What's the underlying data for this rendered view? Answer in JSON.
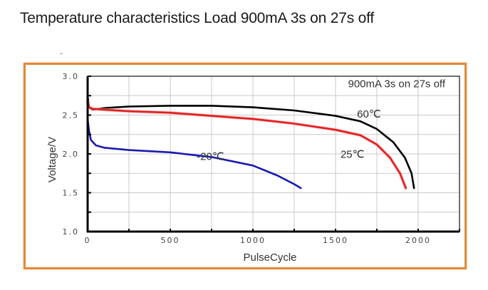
{
  "title": "Temperature characteristics Load 900mA 3s on 27s off",
  "chart_data": {
    "type": "line",
    "title": "Temperature characteristics Load 900mA 3s on 27s off",
    "xlabel": "PulseCycle",
    "ylabel": "Voltage/V",
    "xlim": [
      0,
      2250
    ],
    "ylim": [
      1.0,
      3.0
    ],
    "x_ticks": [
      0,
      500,
      1000,
      1500,
      2000
    ],
    "x_tick_labels": [
      "0",
      "500",
      "1000",
      "1500",
      "2000"
    ],
    "y_ticks": [
      1.0,
      1.5,
      2.0,
      2.5,
      3.0
    ],
    "y_tick_labels": [
      "1.0",
      "1.5",
      "2.0",
      "2.5",
      "3.0"
    ],
    "grid": true,
    "x_grid_step": 250,
    "y_grid_step": 0.25,
    "annotation": "900mA 3s on 27s off",
    "series": [
      {
        "name": "60℃",
        "color": "#000000",
        "label_at": [
          1630,
          2.47
        ],
        "points": [
          [
            0,
            2.75
          ],
          [
            8,
            2.6
          ],
          [
            30,
            2.57
          ],
          [
            100,
            2.59
          ],
          [
            250,
            2.61
          ],
          [
            500,
            2.62
          ],
          [
            750,
            2.62
          ],
          [
            1000,
            2.6
          ],
          [
            1250,
            2.56
          ],
          [
            1500,
            2.49
          ],
          [
            1650,
            2.42
          ],
          [
            1750,
            2.32
          ],
          [
            1850,
            2.15
          ],
          [
            1920,
            1.95
          ],
          [
            1960,
            1.75
          ],
          [
            1975,
            1.56
          ]
        ]
      },
      {
        "name": "25℃",
        "color": "#e02020",
        "label_at": [
          1530,
          1.95
        ],
        "points": [
          [
            0,
            2.68
          ],
          [
            8,
            2.6
          ],
          [
            30,
            2.58
          ],
          [
            100,
            2.57
          ],
          [
            250,
            2.55
          ],
          [
            500,
            2.53
          ],
          [
            750,
            2.49
          ],
          [
            1000,
            2.45
          ],
          [
            1250,
            2.39
          ],
          [
            1500,
            2.31
          ],
          [
            1650,
            2.24
          ],
          [
            1750,
            2.12
          ],
          [
            1830,
            1.95
          ],
          [
            1890,
            1.75
          ],
          [
            1925,
            1.56
          ]
        ]
      },
      {
        "name": "-20℃",
        "color": "#1a1ab0",
        "label_at": [
          660,
          1.92
        ],
        "points": [
          [
            0,
            2.45
          ],
          [
            8,
            2.3
          ],
          [
            20,
            2.18
          ],
          [
            50,
            2.11
          ],
          [
            100,
            2.08
          ],
          [
            250,
            2.05
          ],
          [
            500,
            2.02
          ],
          [
            750,
            1.96
          ],
          [
            1000,
            1.85
          ],
          [
            1150,
            1.72
          ],
          [
            1250,
            1.61
          ],
          [
            1290,
            1.56
          ]
        ]
      }
    ]
  }
}
